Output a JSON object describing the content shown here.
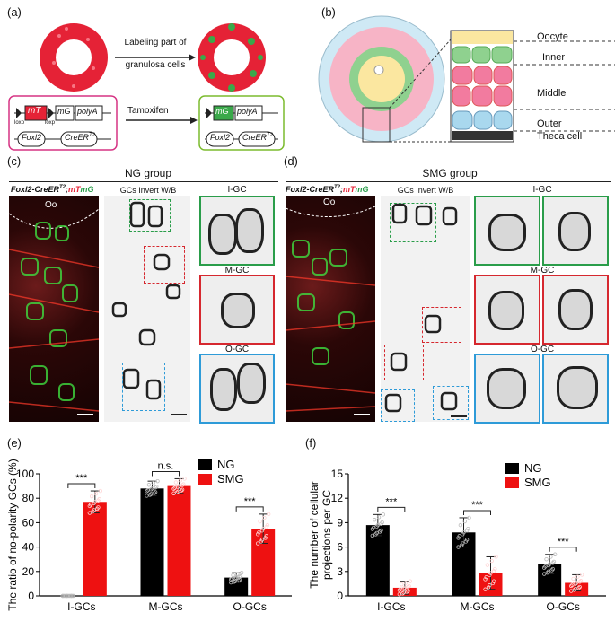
{
  "panels": {
    "a": {
      "label": "(a)",
      "arrow_text_1": "Labeling part of",
      "arrow_text_2": "granulosa cells",
      "tamoxifen": "Tamoxifen",
      "mT": "mT",
      "mG": "mG",
      "polyA": "polyA",
      "loxp1": "loxp",
      "loxp2": "loxp",
      "foxl2": "Foxl2",
      "creer": "CreER",
      "creer_sup": "T2",
      "mG2": "mG",
      "polyA2": "polyA",
      "foxl2b": "Foxl2",
      "creer2": "CreER",
      "creer2_sup": "T2"
    },
    "b": {
      "label": "(b)",
      "oocyte": "Oocyte",
      "inner": "Inner",
      "middle": "Middle",
      "outer": "Outer",
      "theca": "Theca cell"
    },
    "c": {
      "label": "(c)",
      "group": "NG group",
      "genotype_a": "Foxl2-CreER",
      "genotype_sup": "T2",
      "genotype_b": ";",
      "mT": "mT",
      "mG": "mG",
      "oo": "Oo",
      "invert": "GCs Invert W/B",
      "igc": "I-GC",
      "mgc": "M-GC",
      "ogc": "O-GC"
    },
    "d": {
      "label": "(d)",
      "group": "SMG group",
      "genotype_a": "Foxl2-CreER",
      "genotype_sup": "T2",
      "genotype_b": ";",
      "mT": "mT",
      "mG": "mG",
      "oo": "Oo",
      "invert": "GCs Invert W/B",
      "igc": "I-GC",
      "mgc": "M-GC",
      "ogc": "O-GC"
    },
    "e": {
      "label": "(e)"
    },
    "f": {
      "label": "(f)"
    }
  },
  "chart_data": [
    {
      "type": "bar",
      "panel": "e",
      "categories": [
        "I-GCs",
        "M-GCs",
        "O-GCs"
      ],
      "series": [
        {
          "name": "NG",
          "color": "#000000",
          "values": [
            0,
            88,
            15
          ],
          "err": [
            0,
            6,
            4
          ]
        },
        {
          "name": "SMG",
          "color": "#ee1111",
          "values": [
            77,
            90,
            55
          ],
          "err": [
            9,
            6,
            12
          ]
        }
      ],
      "ylabel": "The ratio of no-polarity GCs (%)",
      "ylim": [
        0,
        100
      ],
      "yticks": [
        0,
        20,
        40,
        60,
        80,
        100
      ],
      "significance": [
        "***",
        "n.s.",
        "***"
      ],
      "legend": "top-right"
    },
    {
      "type": "bar",
      "panel": "f",
      "categories": [
        "I-GCs",
        "M-GCs",
        "O-GCs"
      ],
      "series": [
        {
          "name": "NG",
          "color": "#000000",
          "values": [
            8.7,
            7.8,
            3.9
          ],
          "err": [
            1.3,
            1.8,
            1.2
          ]
        },
        {
          "name": "SMG",
          "color": "#ee1111",
          "values": [
            1.0,
            2.8,
            1.6
          ],
          "err": [
            0.8,
            2.0,
            1.0
          ]
        }
      ],
      "ylabel": "The number of cellular projections per GC",
      "ylim": [
        0,
        15
      ],
      "yticks": [
        0,
        3,
        6,
        9,
        12,
        15
      ],
      "significance": [
        "***",
        "***",
        "***"
      ],
      "legend": "top-right"
    }
  ]
}
